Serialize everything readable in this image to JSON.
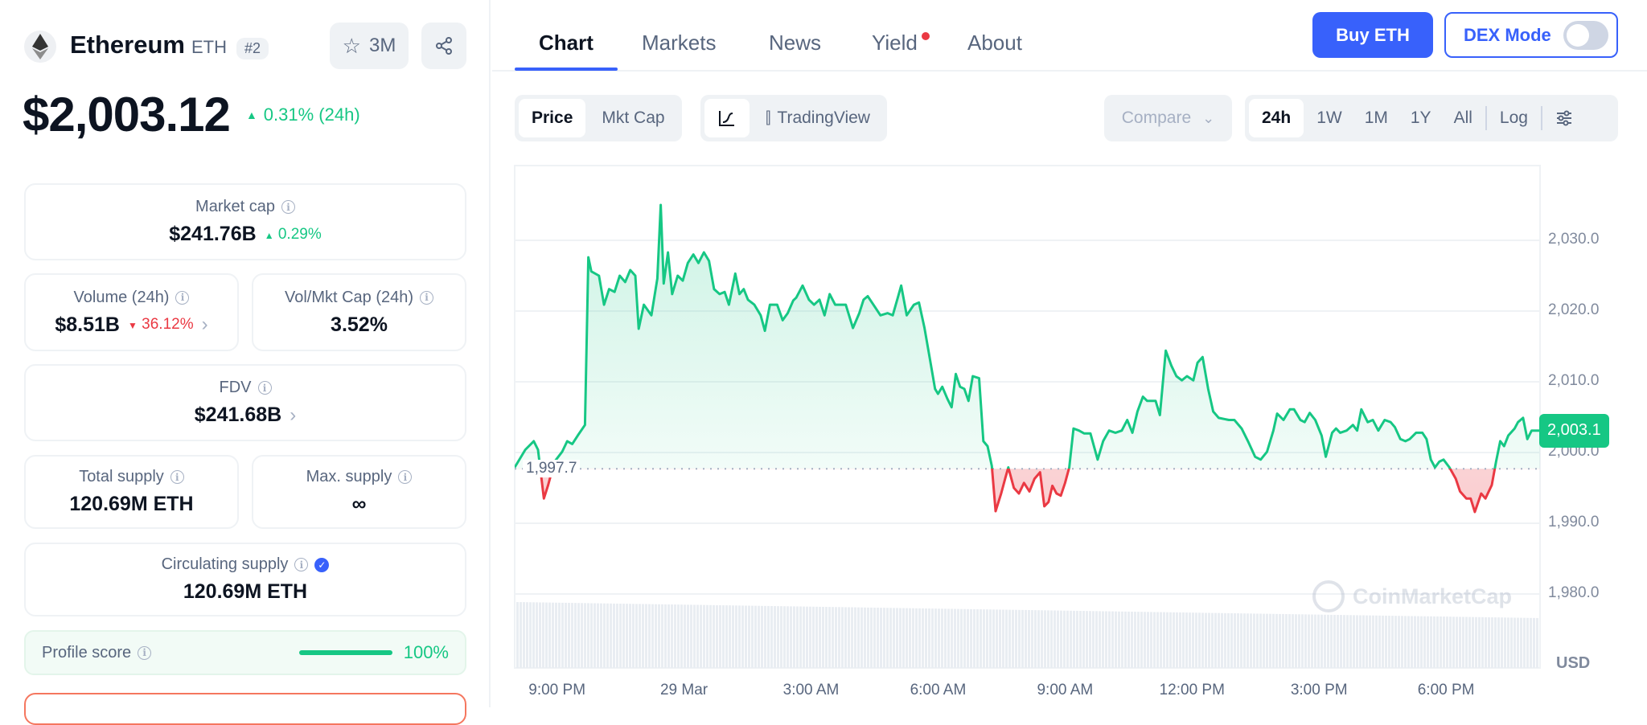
{
  "coin": {
    "name": "Ethereum",
    "symbol": "ETH",
    "rank": "#2",
    "watchlist_count": "3M",
    "price": "$2,003.12",
    "change_24h": "0.31% (24h)"
  },
  "stats": {
    "market_cap": {
      "label": "Market cap",
      "value": "$241.76B",
      "change": "0.29%"
    },
    "volume": {
      "label": "Volume (24h)",
      "value": "$8.51B",
      "change": "36.12%"
    },
    "vol_mkt": {
      "label": "Vol/Mkt Cap (24h)",
      "value": "3.52%"
    },
    "fdv": {
      "label": "FDV",
      "value": "$241.68B"
    },
    "total_supply": {
      "label": "Total supply",
      "value": "120.69M ETH"
    },
    "max_supply": {
      "label": "Max. supply",
      "value": "∞"
    },
    "circ_supply": {
      "label": "Circulating supply",
      "value": "120.69M ETH"
    },
    "profile_score": {
      "label": "Profile score",
      "value": "100%",
      "fraction": 1.0
    }
  },
  "tabs": [
    "Chart",
    "Markets",
    "News",
    "Yield",
    "About"
  ],
  "header": {
    "buy_label": "Buy ETH",
    "dex_label": "DEX Mode",
    "dex_on": false
  },
  "toolbar": {
    "price": "Price",
    "mktcap": "Mkt Cap",
    "tradingview": "TradingView",
    "compare": "Compare",
    "periods": [
      "24h",
      "1W",
      "1M",
      "1Y",
      "All"
    ],
    "log": "Log"
  },
  "colors": {
    "up": "#16c784",
    "down": "#ea3943",
    "accent": "#3861fb"
  },
  "chart_data": {
    "type": "line",
    "title": "",
    "xlabel": "",
    "ylabel": "USD",
    "unit": "USD",
    "ylim": [
      1975,
      2040
    ],
    "xlim_hours_since_8pm": [
      0,
      24.22
    ],
    "yticks": [
      "2,030.0",
      "2,020.0",
      "2,010.0",
      "2,000.0",
      "1,990.0",
      "1,980.0"
    ],
    "ytick_values": [
      2030,
      2020,
      2010,
      2000,
      1990,
      1980
    ],
    "xticks": [
      "9:00 PM",
      "29 Mar",
      "3:00 AM",
      "6:00 AM",
      "9:00 AM",
      "12:00 PM",
      "3:00 PM",
      "6:00 PM"
    ],
    "xtick_values": [
      1,
      4,
      7,
      10,
      13,
      16,
      19,
      22
    ],
    "baseline": 1997.7,
    "baseline_label": "1,997.7",
    "current": 2003.1,
    "current_label": "2,003.1",
    "watermark": "CoinMarketCap",
    "series": [
      {
        "name": "Price",
        "points": [
          [
            0,
            1997.9
          ],
          [
            0.25,
            2000.4
          ],
          [
            0.45,
            2001.6
          ],
          [
            0.55,
            2000.4
          ],
          [
            0.69,
            1993.5
          ],
          [
            0.79,
            1995.4
          ],
          [
            0.94,
            1998.7
          ],
          [
            1.12,
            2000.1
          ],
          [
            1.24,
            2001.6
          ],
          [
            1.36,
            2001.2
          ],
          [
            1.49,
            2002.4
          ],
          [
            1.66,
            2003.9
          ],
          [
            1.74,
            2027.6
          ],
          [
            1.81,
            2025.6
          ],
          [
            1.99,
            2025.0
          ],
          [
            2.11,
            2020.9
          ],
          [
            2.23,
            2023.1
          ],
          [
            2.36,
            2022.7
          ],
          [
            2.48,
            2025.0
          ],
          [
            2.61,
            2024.1
          ],
          [
            2.73,
            2025.8
          ],
          [
            2.85,
            2025.0
          ],
          [
            2.93,
            2017.5
          ],
          [
            3.05,
            2020.9
          ],
          [
            3.23,
            2019.4
          ],
          [
            3.37,
            2024.6
          ],
          [
            3.45,
            2035.0
          ],
          [
            3.52,
            2023.9
          ],
          [
            3.62,
            2028.3
          ],
          [
            3.72,
            2022.4
          ],
          [
            3.85,
            2025.0
          ],
          [
            3.97,
            2024.3
          ],
          [
            4.09,
            2026.8
          ],
          [
            4.22,
            2028.0
          ],
          [
            4.34,
            2026.8
          ],
          [
            4.47,
            2028.3
          ],
          [
            4.59,
            2027.1
          ],
          [
            4.71,
            2023.1
          ],
          [
            4.84,
            2022.4
          ],
          [
            4.96,
            2022.7
          ],
          [
            5.06,
            2020.9
          ],
          [
            5.21,
            2025.3
          ],
          [
            5.31,
            2022.4
          ],
          [
            5.41,
            2023.1
          ],
          [
            5.51,
            2021.6
          ],
          [
            5.66,
            2020.9
          ],
          [
            5.81,
            2019.4
          ],
          [
            5.91,
            2017.2
          ],
          [
            6.03,
            2020.9
          ],
          [
            6.2,
            2020.9
          ],
          [
            6.33,
            2018.7
          ],
          [
            6.45,
            2019.7
          ],
          [
            6.58,
            2021.5
          ],
          [
            6.65,
            2021.9
          ],
          [
            6.8,
            2023.6
          ],
          [
            6.95,
            2021.6
          ],
          [
            7.07,
            2020.9
          ],
          [
            7.2,
            2021.6
          ],
          [
            7.32,
            2019.4
          ],
          [
            7.44,
            2022.4
          ],
          [
            7.57,
            2020.9
          ],
          [
            7.82,
            2020.9
          ],
          [
            7.99,
            2017.6
          ],
          [
            8.14,
            2019.7
          ],
          [
            8.24,
            2021.6
          ],
          [
            8.34,
            2022.1
          ],
          [
            8.44,
            2021.2
          ],
          [
            8.64,
            2019.4
          ],
          [
            8.81,
            2019.7
          ],
          [
            8.93,
            2019.4
          ],
          [
            9.06,
            2022.1
          ],
          [
            9.13,
            2023.6
          ],
          [
            9.26,
            2019.4
          ],
          [
            9.43,
            2020.9
          ],
          [
            9.55,
            2021.2
          ],
          [
            9.68,
            2017.6
          ],
          [
            9.8,
            2013.5
          ],
          [
            9.93,
            2009.0
          ],
          [
            10.0,
            2008.3
          ],
          [
            10.1,
            2009.3
          ],
          [
            10.22,
            2007.6
          ],
          [
            10.32,
            2006.4
          ],
          [
            10.42,
            2011.1
          ],
          [
            10.52,
            2009.3
          ],
          [
            10.62,
            2009.0
          ],
          [
            10.72,
            2007.3
          ],
          [
            10.82,
            2010.8
          ],
          [
            10.97,
            2010.5
          ],
          [
            11.07,
            2001.6
          ],
          [
            11.17,
            2000.9
          ],
          [
            11.27,
            1998.1
          ],
          [
            11.36,
            1991.7
          ],
          [
            11.49,
            1994.2
          ],
          [
            11.59,
            1996.4
          ],
          [
            11.66,
            1997.9
          ],
          [
            11.79,
            1995.0
          ],
          [
            11.91,
            1994.2
          ],
          [
            12.03,
            1995.7
          ],
          [
            12.16,
            1994.5
          ],
          [
            12.28,
            1996.3
          ],
          [
            12.41,
            1997.2
          ],
          [
            12.51,
            1992.4
          ],
          [
            12.61,
            1993.0
          ],
          [
            12.7,
            1995.3
          ],
          [
            12.8,
            1994.2
          ],
          [
            12.9,
            1993.9
          ],
          [
            13.0,
            1995.7
          ],
          [
            13.1,
            1997.9
          ],
          [
            13.2,
            2003.4
          ],
          [
            13.33,
            2003.1
          ],
          [
            13.45,
            2002.7
          ],
          [
            13.6,
            2002.7
          ],
          [
            13.77,
            1999.0
          ],
          [
            13.9,
            2001.6
          ],
          [
            14.04,
            2003.1
          ],
          [
            14.19,
            2002.8
          ],
          [
            14.34,
            2003.1
          ],
          [
            14.47,
            2004.6
          ],
          [
            14.59,
            2002.8
          ],
          [
            14.71,
            2005.8
          ],
          [
            14.84,
            2007.9
          ],
          [
            14.94,
            2007.3
          ],
          [
            15.14,
            2007.3
          ],
          [
            15.24,
            2005.3
          ],
          [
            15.38,
            2014.4
          ],
          [
            15.51,
            2012.3
          ],
          [
            15.63,
            2010.8
          ],
          [
            15.76,
            2010.2
          ],
          [
            15.88,
            2010.8
          ],
          [
            16.03,
            2010.2
          ],
          [
            16.13,
            2012.7
          ],
          [
            16.25,
            2013.5
          ],
          [
            16.38,
            2009.0
          ],
          [
            16.5,
            2005.8
          ],
          [
            16.63,
            2004.9
          ],
          [
            16.87,
            2004.6
          ],
          [
            17.0,
            2004.6
          ],
          [
            17.17,
            2003.4
          ],
          [
            17.32,
            2001.6
          ],
          [
            17.49,
            1999.4
          ],
          [
            17.62,
            1999.0
          ],
          [
            17.77,
            2000.1
          ],
          [
            17.92,
            2003.1
          ],
          [
            18.01,
            2005.5
          ],
          [
            18.16,
            2004.6
          ],
          [
            18.31,
            2006.1
          ],
          [
            18.41,
            2006.1
          ],
          [
            18.56,
            2004.6
          ],
          [
            18.66,
            2004.3
          ],
          [
            18.78,
            2005.6
          ],
          [
            18.91,
            2004.6
          ],
          [
            19.06,
            2002.4
          ],
          [
            19.16,
            1999.4
          ],
          [
            19.31,
            2002.8
          ],
          [
            19.4,
            2003.4
          ],
          [
            19.5,
            2002.8
          ],
          [
            19.65,
            2003.1
          ],
          [
            19.8,
            2003.9
          ],
          [
            19.9,
            2003.1
          ],
          [
            20.0,
            2006.1
          ],
          [
            20.15,
            2004.3
          ],
          [
            20.27,
            2004.6
          ],
          [
            20.4,
            2003.1
          ],
          [
            20.55,
            2004.6
          ],
          [
            20.69,
            2004.3
          ],
          [
            20.79,
            2003.6
          ],
          [
            20.92,
            2001.9
          ],
          [
            21.04,
            2001.6
          ],
          [
            21.14,
            2001.9
          ],
          [
            21.29,
            2002.8
          ],
          [
            21.44,
            2002.8
          ],
          [
            21.54,
            2001.9
          ],
          [
            21.64,
            1999.0
          ],
          [
            21.74,
            1997.9
          ],
          [
            21.84,
            1998.7
          ],
          [
            21.94,
            1999.0
          ],
          [
            22.08,
            1997.9
          ],
          [
            22.23,
            1996.3
          ],
          [
            22.33,
            1994.5
          ],
          [
            22.48,
            1993.5
          ],
          [
            22.58,
            1993.5
          ],
          [
            22.68,
            1991.6
          ],
          [
            22.83,
            1994.2
          ],
          [
            22.93,
            1993.5
          ],
          [
            23.08,
            1995.4
          ],
          [
            23.18,
            1998.7
          ],
          [
            23.28,
            2001.6
          ],
          [
            23.37,
            2000.9
          ],
          [
            23.47,
            2002.4
          ],
          [
            23.62,
            2003.4
          ],
          [
            23.7,
            2004.3
          ],
          [
            23.82,
            2004.9
          ],
          [
            23.92,
            2001.9
          ],
          [
            24.02,
            2003.1
          ],
          [
            24.22,
            2003.1
          ]
        ]
      }
    ]
  }
}
